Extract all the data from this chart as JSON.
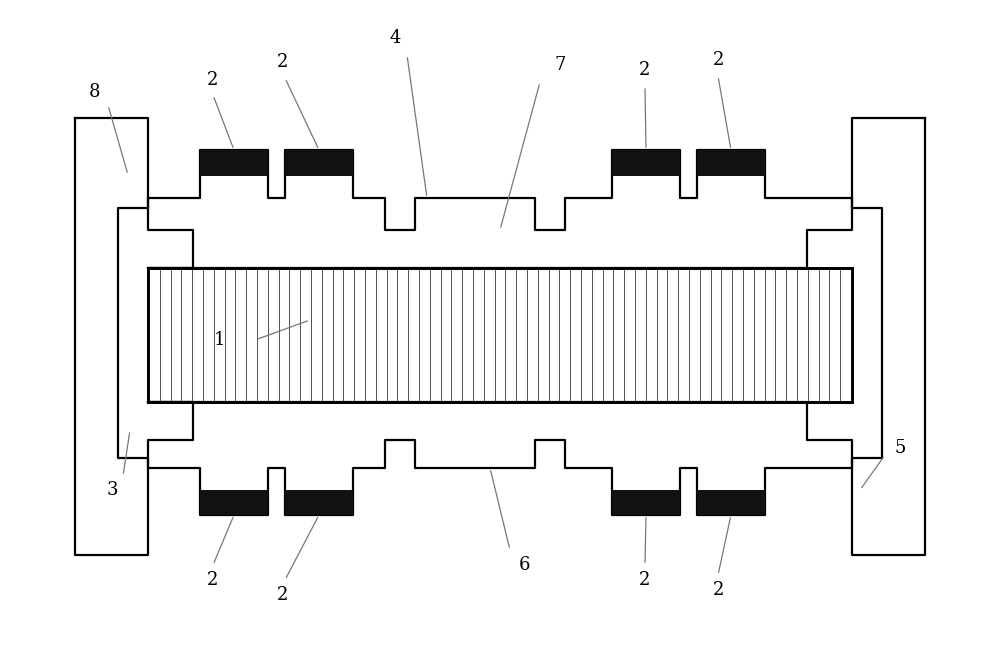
{
  "bg_color": "#ffffff",
  "line_color": "#000000",
  "dark_rect_color": "#111111",
  "line_width": 1.6,
  "fig_width": 10.0,
  "fig_height": 6.5,
  "annotation_color": "#777777",
  "ann_lw": 0.9,
  "label_fontsize": 13
}
